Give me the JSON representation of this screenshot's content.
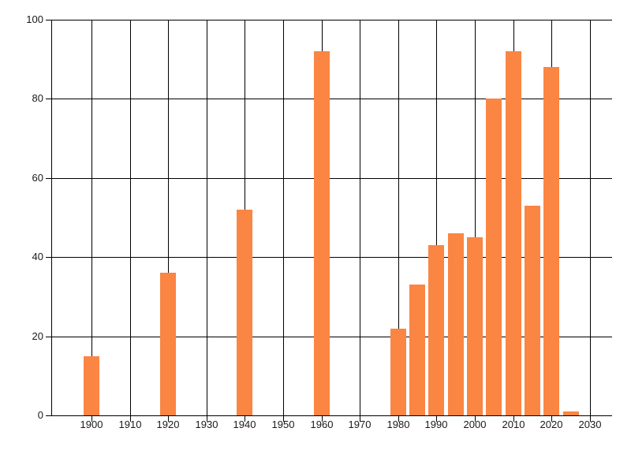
{
  "chart_data": {
    "type": "bar",
    "title": "",
    "xlabel": "",
    "ylabel": "",
    "x": [
      1900,
      1920,
      1940,
      1960,
      1980,
      1985,
      1990,
      1995,
      2000,
      2005,
      2010,
      2015,
      2020,
      2025
    ],
    "values": [
      15,
      36,
      52,
      92,
      22,
      33,
      43,
      46,
      45,
      80,
      92,
      53,
      88,
      1
    ],
    "xticks": [
      1900,
      1910,
      1920,
      1930,
      1940,
      1950,
      1960,
      1970,
      1980,
      1990,
      2000,
      2010,
      2020,
      2030
    ],
    "yticks": [
      0,
      20,
      40,
      60,
      80,
      100
    ],
    "xlim": [
      1889.5,
      2035.8
    ],
    "ylim": [
      0,
      100
    ],
    "grid": true,
    "legend": false,
    "colors": {
      "bar": "#fb8543",
      "grid": "#000000",
      "axis": "#000000",
      "tick_label": "#1a1a1a",
      "background": "#ffffff"
    }
  }
}
